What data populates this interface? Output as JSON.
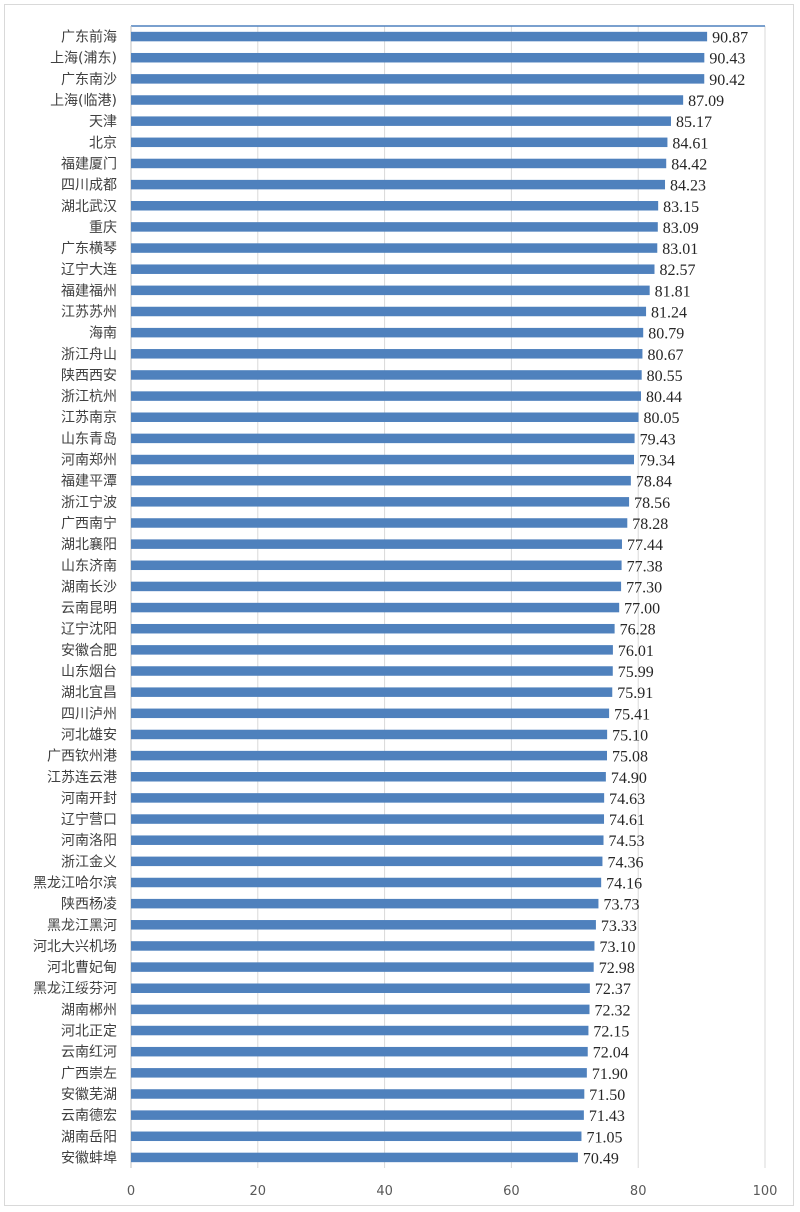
{
  "chart_data": {
    "type": "bar",
    "orientation": "horizontal",
    "title": "",
    "xlabel": "",
    "ylabel": "",
    "xlim": [
      0,
      100
    ],
    "x_ticks": [
      0,
      20,
      40,
      60,
      80,
      100
    ],
    "grid": "vertical",
    "legend": "none",
    "bar_color": "#4f81bd",
    "categories": [
      "广东前海",
      "上海(浦东)",
      "广东南沙",
      "上海(临港)",
      "天津",
      "北京",
      "福建厦门",
      "四川成都",
      "湖北武汉",
      "重庆",
      "广东横琴",
      "辽宁大连",
      "福建福州",
      "江苏苏州",
      "海南",
      "浙江舟山",
      "陕西西安",
      "浙江杭州",
      "江苏南京",
      "山东青岛",
      "河南郑州",
      "福建平潭",
      "浙江宁波",
      "广西南宁",
      "湖北襄阳",
      "山东济南",
      "湖南长沙",
      "云南昆明",
      "辽宁沈阳",
      "安徽合肥",
      "山东烟台",
      "湖北宜昌",
      "四川泸州",
      "河北雄安",
      "广西钦州港",
      "江苏连云港",
      "河南开封",
      "辽宁营口",
      "河南洛阳",
      "浙江金义",
      "黑龙江哈尔滨",
      "陕西杨凌",
      "黑龙江黑河",
      "河北大兴机场",
      "河北曹妃甸",
      "黑龙江绥芬河",
      "湖南郴州",
      "河北正定",
      "云南红河",
      "广西崇左",
      "安徽芜湖",
      "云南德宏",
      "湖南岳阳",
      "安徽蚌埠"
    ],
    "values": [
      90.87,
      90.43,
      90.42,
      87.09,
      85.17,
      84.61,
      84.42,
      84.23,
      83.15,
      83.09,
      83.01,
      82.57,
      81.81,
      81.24,
      80.79,
      80.67,
      80.55,
      80.44,
      80.05,
      79.43,
      79.34,
      78.84,
      78.56,
      78.28,
      77.44,
      77.38,
      77.3,
      77.0,
      76.28,
      76.01,
      75.99,
      75.91,
      75.41,
      75.1,
      75.08,
      74.9,
      74.63,
      74.61,
      74.53,
      74.36,
      74.16,
      73.73,
      73.33,
      73.1,
      72.98,
      72.37,
      72.32,
      72.15,
      72.04,
      71.9,
      71.5,
      71.43,
      71.05,
      70.49
    ],
    "value_labels": [
      "90.87",
      "90.43",
      "90.42",
      "87.09",
      "85.17",
      "84.61",
      "84.42",
      "84.23",
      "83.15",
      "83.09",
      "83.01",
      "82.57",
      "81.81",
      "81.24",
      "80.79",
      "80.67",
      "80.55",
      "80.44",
      "80.05",
      "79.43",
      "79.34",
      "78.84",
      "78.56",
      "78.28",
      "77.44",
      "77.38",
      "77.30",
      "77.00",
      "76.28",
      "76.01",
      "75.99",
      "75.91",
      "75.41",
      "75.10",
      "75.08",
      "74.90",
      "74.63",
      "74.61",
      "74.53",
      "74.36",
      "74.16",
      "73.73",
      "73.33",
      "73.10",
      "72.98",
      "72.37",
      "72.32",
      "72.15",
      "72.04",
      "71.90",
      "71.50",
      "71.43",
      "71.05",
      "70.49"
    ]
  }
}
